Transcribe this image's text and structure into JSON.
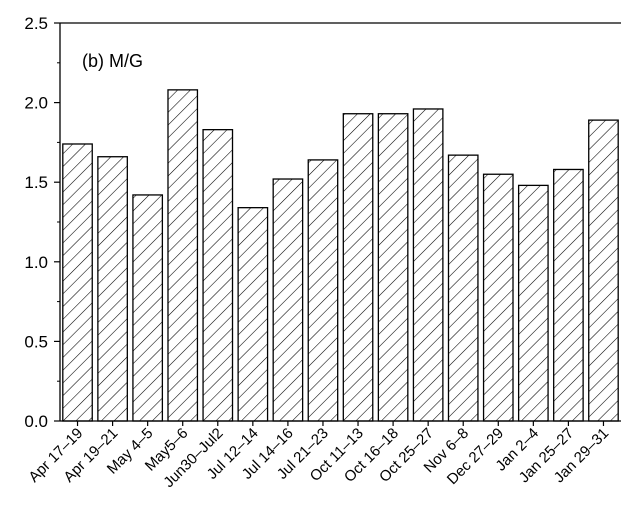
{
  "chart_data": {
    "type": "bar",
    "title": "",
    "annotation": "(b) M/G",
    "xlabel": "",
    "ylabel": "",
    "ylim": [
      0,
      2.5
    ],
    "yticks": [
      "0.0",
      "0.5",
      "1.0",
      "1.5",
      "2.0",
      "2.5"
    ],
    "categories": [
      "Apr 17–19",
      "Apr 19–21",
      "May 4–5",
      "May5–6",
      "Jun30–Jul2",
      "Jul 12–14",
      "Jul 14–16",
      "Jul 21–23",
      "Oct 11–13",
      "Oct 16–18",
      "Oct 25–27",
      "Nov 6–8",
      "Dec 27–29",
      "Jan 2–4",
      "Jan 25–27",
      "Jan 29–31"
    ],
    "values": [
      1.74,
      1.66,
      1.42,
      2.08,
      1.83,
      1.34,
      1.52,
      1.64,
      1.93,
      1.93,
      1.96,
      1.67,
      1.55,
      1.48,
      1.58,
      1.89
    ],
    "bar_fill": "hatched",
    "bar_color": "#000000",
    "grid": false,
    "legend": "none"
  }
}
